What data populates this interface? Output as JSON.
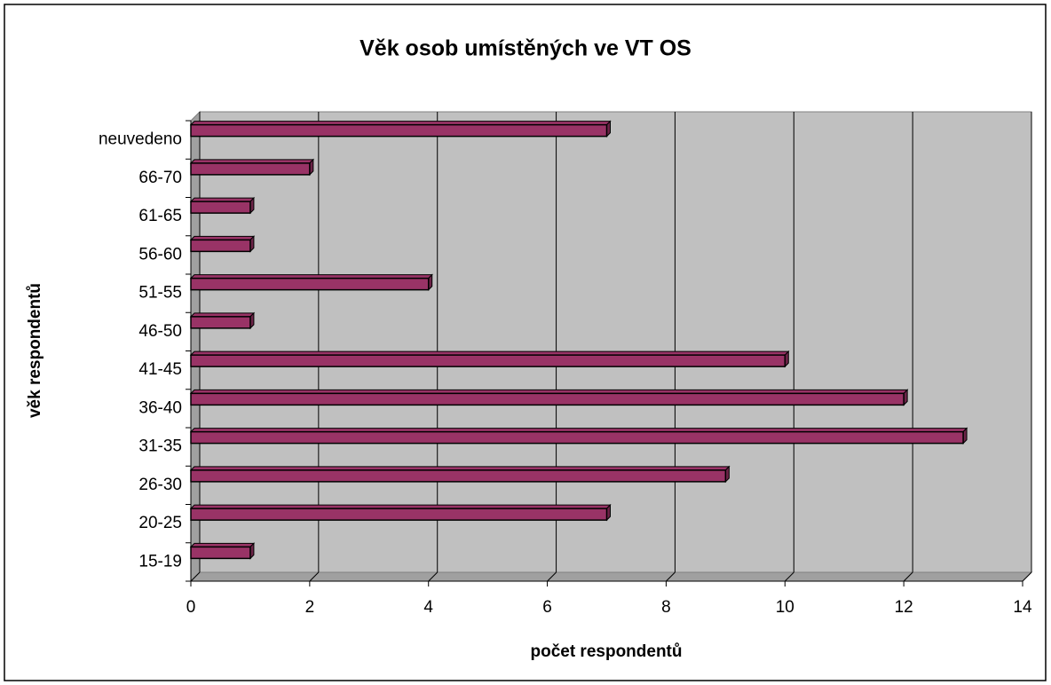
{
  "chart_data": {
    "type": "hbar3d",
    "title": "Věk osob umístěných ve VT OS",
    "xlabel": "počet respondentů",
    "ylabel": "věk respondentů",
    "categories": [
      "15-19",
      "20-25",
      "26-30",
      "31-35",
      "36-40",
      "41-45",
      "46-50",
      "51-55",
      "56-60",
      "61-65",
      "66-70",
      "neuvedeno"
    ],
    "values": [
      1,
      7,
      9,
      13,
      12,
      10,
      1,
      4,
      1,
      1,
      2,
      7
    ],
    "color": "#993366",
    "xlim": [
      0,
      14
    ],
    "xticks": [
      0,
      2,
      4,
      6,
      8,
      10,
      12,
      14
    ],
    "grid": true
  }
}
